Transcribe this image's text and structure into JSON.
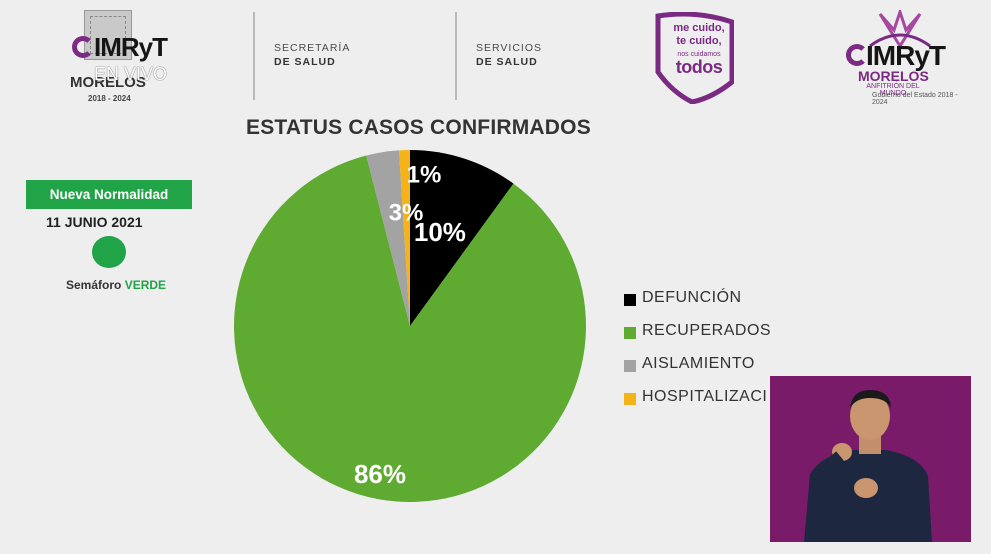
{
  "header": {
    "left_logo_text": "IMRyT",
    "live_label": "EN VIVO",
    "left_logo_state": "MORELOS",
    "left_logo_years": "2018 - 2024",
    "ministry_1_line1": "SECRETARÍA",
    "ministry_1_line2": "DE SALUD",
    "ministry_2_line1": "SERVICIOS",
    "ministry_2_line2": "DE SALUD",
    "slogan_line1": "me cuido,",
    "slogan_line2": "te cuido,",
    "slogan_line3": "nos cuidamos",
    "slogan_line4": "todos",
    "right_logo_text": "IMRyT",
    "right_logo_state": "MORELOS",
    "right_logo_sub": "ANFITRIÓN DEL MUNDO",
    "right_logo_sub2": "Gobierno del Estado",
    "right_logo_years": "2018 - 2024"
  },
  "status": {
    "phase": "Nueva Normalidad",
    "date": "11 JUNIO 2021",
    "semaforo_prefix": "Semáforo",
    "semaforo_value": "VERDE",
    "semaforo_color": "#21a348"
  },
  "chart_data": {
    "type": "pie",
    "title": "ESTATUS CASOS CONFIRMADOS",
    "legend_position": "right",
    "slices": [
      {
        "label": "DEFUNCIÓN",
        "value": 10,
        "display": "10%",
        "color": "#000000"
      },
      {
        "label": "RECUPERADOS",
        "value": 86,
        "display": "86%",
        "color": "#5fab32"
      },
      {
        "label": "AISLAMIENTO",
        "value": 3,
        "display": "3%",
        "color": "#a3a3a3"
      },
      {
        "label": "HOSPITALIZACI",
        "value": 1,
        "display": "1%",
        "color": "#f6b219"
      }
    ]
  },
  "colors": {
    "background": "#eeeeee",
    "brand_purple": "#7a2a82",
    "interpreter_bg": "#7a1b6a"
  }
}
